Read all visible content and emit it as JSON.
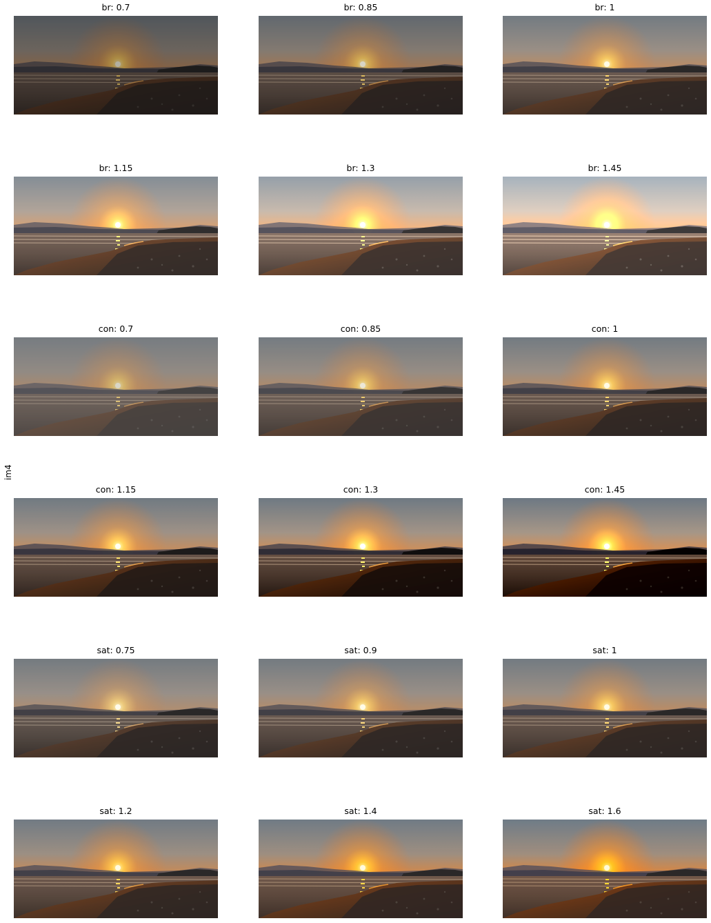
{
  "figure": {
    "row_label": "im4",
    "panels": [
      {
        "title": "br: 0.7",
        "adjustment": "brightness",
        "factor": 0.7
      },
      {
        "title": "br: 0.85",
        "adjustment": "brightness",
        "factor": 0.85
      },
      {
        "title": "br: 1",
        "adjustment": "brightness",
        "factor": 1
      },
      {
        "title": "br: 1.15",
        "adjustment": "brightness",
        "factor": 1.15
      },
      {
        "title": "br: 1.3",
        "adjustment": "brightness",
        "factor": 1.3
      },
      {
        "title": "br: 1.45",
        "adjustment": "brightness",
        "factor": 1.45
      },
      {
        "title": "con: 0.7",
        "adjustment": "contrast",
        "factor": 0.7
      },
      {
        "title": "con: 0.85",
        "adjustment": "contrast",
        "factor": 0.85
      },
      {
        "title": "con: 1",
        "adjustment": "contrast",
        "factor": 1
      },
      {
        "title": "con: 1.15",
        "adjustment": "contrast",
        "factor": 1.15
      },
      {
        "title": "con: 1.3",
        "adjustment": "contrast",
        "factor": 1.3
      },
      {
        "title": "con: 1.45",
        "adjustment": "contrast",
        "factor": 1.45
      },
      {
        "title": "sat: 0.75",
        "adjustment": "saturation",
        "factor": 0.75
      },
      {
        "title": "sat: 0.9",
        "adjustment": "saturation",
        "factor": 0.9
      },
      {
        "title": "sat: 1",
        "adjustment": "saturation",
        "factor": 1
      },
      {
        "title": "sat: 1.2",
        "adjustment": "saturation",
        "factor": 1.2
      },
      {
        "title": "sat: 1.4",
        "adjustment": "saturation",
        "factor": 1.4
      },
      {
        "title": "sat: 1.6",
        "adjustment": "saturation",
        "factor": 1.6
      }
    ]
  }
}
